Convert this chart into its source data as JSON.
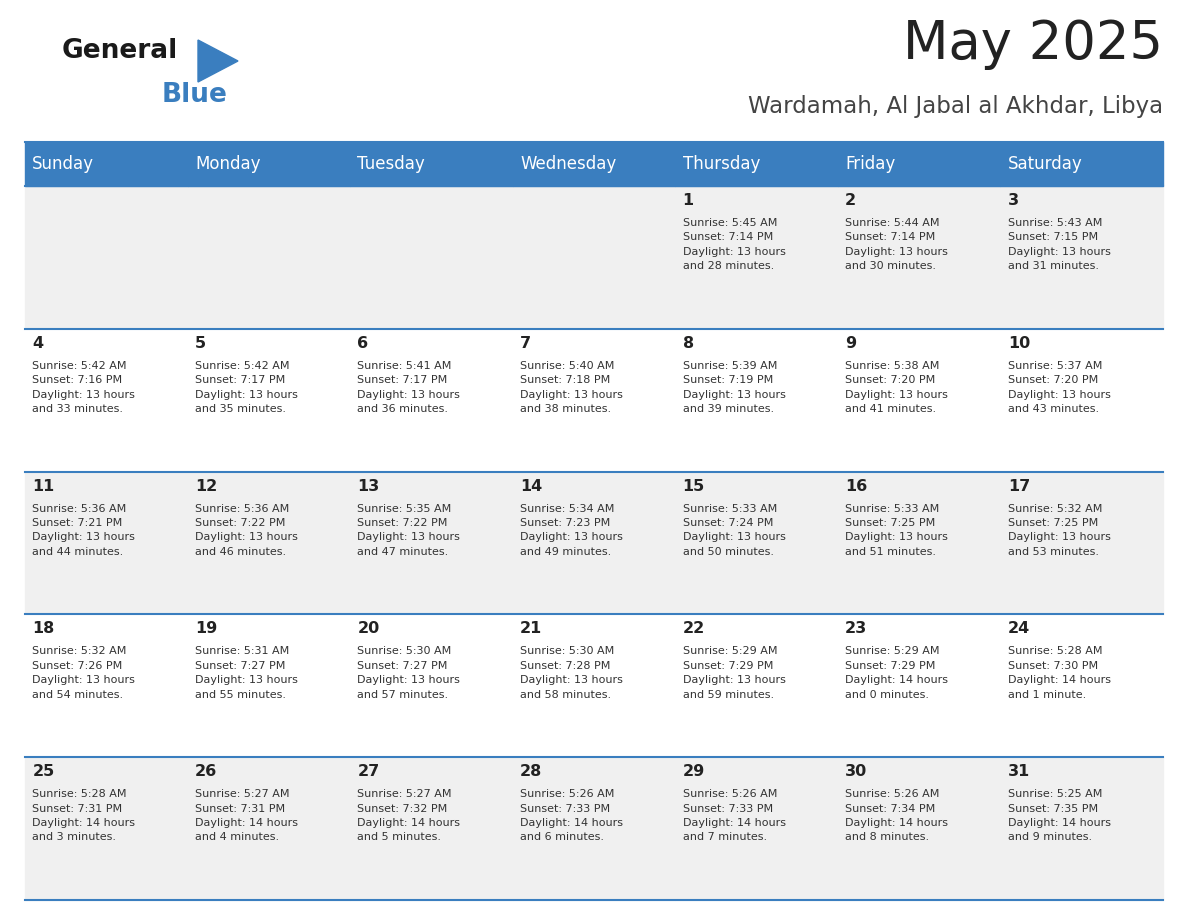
{
  "title": "May 2025",
  "subtitle": "Wardamah, Al Jabal al Akhdar, Libya",
  "days_of_week": [
    "Sunday",
    "Monday",
    "Tuesday",
    "Wednesday",
    "Thursday",
    "Friday",
    "Saturday"
  ],
  "header_bg": "#3a7ebf",
  "header_text": "#ffffff",
  "row_bg_odd": "#f0f0f0",
  "row_bg_even": "#ffffff",
  "border_color": "#3a7ebf",
  "day_number_color": "#222222",
  "text_color": "#333333",
  "title_color": "#222222",
  "subtitle_color": "#444444",
  "calendar_data": [
    [
      {
        "day": null,
        "info": null
      },
      {
        "day": null,
        "info": null
      },
      {
        "day": null,
        "info": null
      },
      {
        "day": null,
        "info": null
      },
      {
        "day": 1,
        "info": "Sunrise: 5:45 AM\nSunset: 7:14 PM\nDaylight: 13 hours\nand 28 minutes."
      },
      {
        "day": 2,
        "info": "Sunrise: 5:44 AM\nSunset: 7:14 PM\nDaylight: 13 hours\nand 30 minutes."
      },
      {
        "day": 3,
        "info": "Sunrise: 5:43 AM\nSunset: 7:15 PM\nDaylight: 13 hours\nand 31 minutes."
      }
    ],
    [
      {
        "day": 4,
        "info": "Sunrise: 5:42 AM\nSunset: 7:16 PM\nDaylight: 13 hours\nand 33 minutes."
      },
      {
        "day": 5,
        "info": "Sunrise: 5:42 AM\nSunset: 7:17 PM\nDaylight: 13 hours\nand 35 minutes."
      },
      {
        "day": 6,
        "info": "Sunrise: 5:41 AM\nSunset: 7:17 PM\nDaylight: 13 hours\nand 36 minutes."
      },
      {
        "day": 7,
        "info": "Sunrise: 5:40 AM\nSunset: 7:18 PM\nDaylight: 13 hours\nand 38 minutes."
      },
      {
        "day": 8,
        "info": "Sunrise: 5:39 AM\nSunset: 7:19 PM\nDaylight: 13 hours\nand 39 minutes."
      },
      {
        "day": 9,
        "info": "Sunrise: 5:38 AM\nSunset: 7:20 PM\nDaylight: 13 hours\nand 41 minutes."
      },
      {
        "day": 10,
        "info": "Sunrise: 5:37 AM\nSunset: 7:20 PM\nDaylight: 13 hours\nand 43 minutes."
      }
    ],
    [
      {
        "day": 11,
        "info": "Sunrise: 5:36 AM\nSunset: 7:21 PM\nDaylight: 13 hours\nand 44 minutes."
      },
      {
        "day": 12,
        "info": "Sunrise: 5:36 AM\nSunset: 7:22 PM\nDaylight: 13 hours\nand 46 minutes."
      },
      {
        "day": 13,
        "info": "Sunrise: 5:35 AM\nSunset: 7:22 PM\nDaylight: 13 hours\nand 47 minutes."
      },
      {
        "day": 14,
        "info": "Sunrise: 5:34 AM\nSunset: 7:23 PM\nDaylight: 13 hours\nand 49 minutes."
      },
      {
        "day": 15,
        "info": "Sunrise: 5:33 AM\nSunset: 7:24 PM\nDaylight: 13 hours\nand 50 minutes."
      },
      {
        "day": 16,
        "info": "Sunrise: 5:33 AM\nSunset: 7:25 PM\nDaylight: 13 hours\nand 51 minutes."
      },
      {
        "day": 17,
        "info": "Sunrise: 5:32 AM\nSunset: 7:25 PM\nDaylight: 13 hours\nand 53 minutes."
      }
    ],
    [
      {
        "day": 18,
        "info": "Sunrise: 5:32 AM\nSunset: 7:26 PM\nDaylight: 13 hours\nand 54 minutes."
      },
      {
        "day": 19,
        "info": "Sunrise: 5:31 AM\nSunset: 7:27 PM\nDaylight: 13 hours\nand 55 minutes."
      },
      {
        "day": 20,
        "info": "Sunrise: 5:30 AM\nSunset: 7:27 PM\nDaylight: 13 hours\nand 57 minutes."
      },
      {
        "day": 21,
        "info": "Sunrise: 5:30 AM\nSunset: 7:28 PM\nDaylight: 13 hours\nand 58 minutes."
      },
      {
        "day": 22,
        "info": "Sunrise: 5:29 AM\nSunset: 7:29 PM\nDaylight: 13 hours\nand 59 minutes."
      },
      {
        "day": 23,
        "info": "Sunrise: 5:29 AM\nSunset: 7:29 PM\nDaylight: 14 hours\nand 0 minutes."
      },
      {
        "day": 24,
        "info": "Sunrise: 5:28 AM\nSunset: 7:30 PM\nDaylight: 14 hours\nand 1 minute."
      }
    ],
    [
      {
        "day": 25,
        "info": "Sunrise: 5:28 AM\nSunset: 7:31 PM\nDaylight: 14 hours\nand 3 minutes."
      },
      {
        "day": 26,
        "info": "Sunrise: 5:27 AM\nSunset: 7:31 PM\nDaylight: 14 hours\nand 4 minutes."
      },
      {
        "day": 27,
        "info": "Sunrise: 5:27 AM\nSunset: 7:32 PM\nDaylight: 14 hours\nand 5 minutes."
      },
      {
        "day": 28,
        "info": "Sunrise: 5:26 AM\nSunset: 7:33 PM\nDaylight: 14 hours\nand 6 minutes."
      },
      {
        "day": 29,
        "info": "Sunrise: 5:26 AM\nSunset: 7:33 PM\nDaylight: 14 hours\nand 7 minutes."
      },
      {
        "day": 30,
        "info": "Sunrise: 5:26 AM\nSunset: 7:34 PM\nDaylight: 14 hours\nand 8 minutes."
      },
      {
        "day": 31,
        "info": "Sunrise: 5:25 AM\nSunset: 7:35 PM\nDaylight: 14 hours\nand 9 minutes."
      }
    ]
  ],
  "logo_text_general": "General",
  "logo_text_blue": "Blue",
  "logo_color_general": "#1a1a1a",
  "logo_color_blue": "#3a7ebf",
  "logo_triangle_color": "#3a7ebf",
  "fig_width": 11.88,
  "fig_height": 9.18,
  "dpi": 100
}
